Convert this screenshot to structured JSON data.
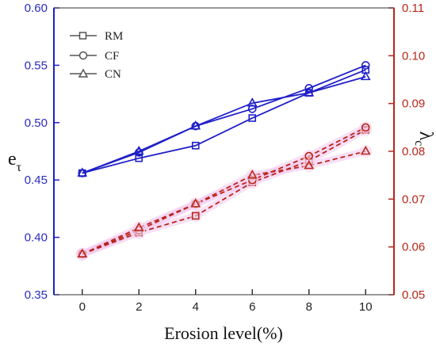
{
  "chart_data": {
    "type": "line",
    "x": [
      0,
      2,
      4,
      6,
      8,
      10
    ],
    "x_ticks": [
      "0",
      "2",
      "4",
      "6",
      "8",
      "10"
    ],
    "xlabel": "Erosion level(%)",
    "xlim": [
      -1,
      11
    ],
    "ylabel_left": "e",
    "ylabel_left_sub": "τ",
    "ylim_left": [
      0.35,
      0.6
    ],
    "y_ticks_left": [
      "0.35",
      "0.40",
      "0.45",
      "0.50",
      "0.55",
      "0.60"
    ],
    "ylabel_right": "λ",
    "ylabel_right_sub": "c",
    "ylim_right": [
      0.05,
      0.11
    ],
    "y_ticks_right": [
      "0.05",
      "0.06",
      "0.07",
      "0.08",
      "0.09",
      "0.10",
      "0.11"
    ],
    "grid": false,
    "legend_position": "top-left",
    "left_color": "#1f1fc8",
    "right_color": "#b8261a",
    "left_series": [
      {
        "name": "RM",
        "marker": "square",
        "values": [
          0.456,
          0.469,
          0.48,
          0.504,
          0.526,
          0.546
        ]
      },
      {
        "name": "CF",
        "marker": "circle",
        "values": [
          0.456,
          0.474,
          0.497,
          0.512,
          0.53,
          0.55
        ]
      },
      {
        "name": "CN",
        "marker": "triangle",
        "values": [
          0.456,
          0.475,
          0.497,
          0.517,
          0.526,
          0.54
        ]
      }
    ],
    "right_series": [
      {
        "name": "RM",
        "marker": "square",
        "values": [
          0.0585,
          0.063,
          0.0665,
          0.0735,
          0.078,
          0.0845
        ]
      },
      {
        "name": "CF",
        "marker": "circle",
        "values": [
          0.0585,
          0.0635,
          0.069,
          0.074,
          0.079,
          0.085
        ]
      },
      {
        "name": "CN",
        "marker": "triangle",
        "values": [
          0.0585,
          0.064,
          0.069,
          0.075,
          0.077,
          0.08
        ]
      }
    ]
  }
}
